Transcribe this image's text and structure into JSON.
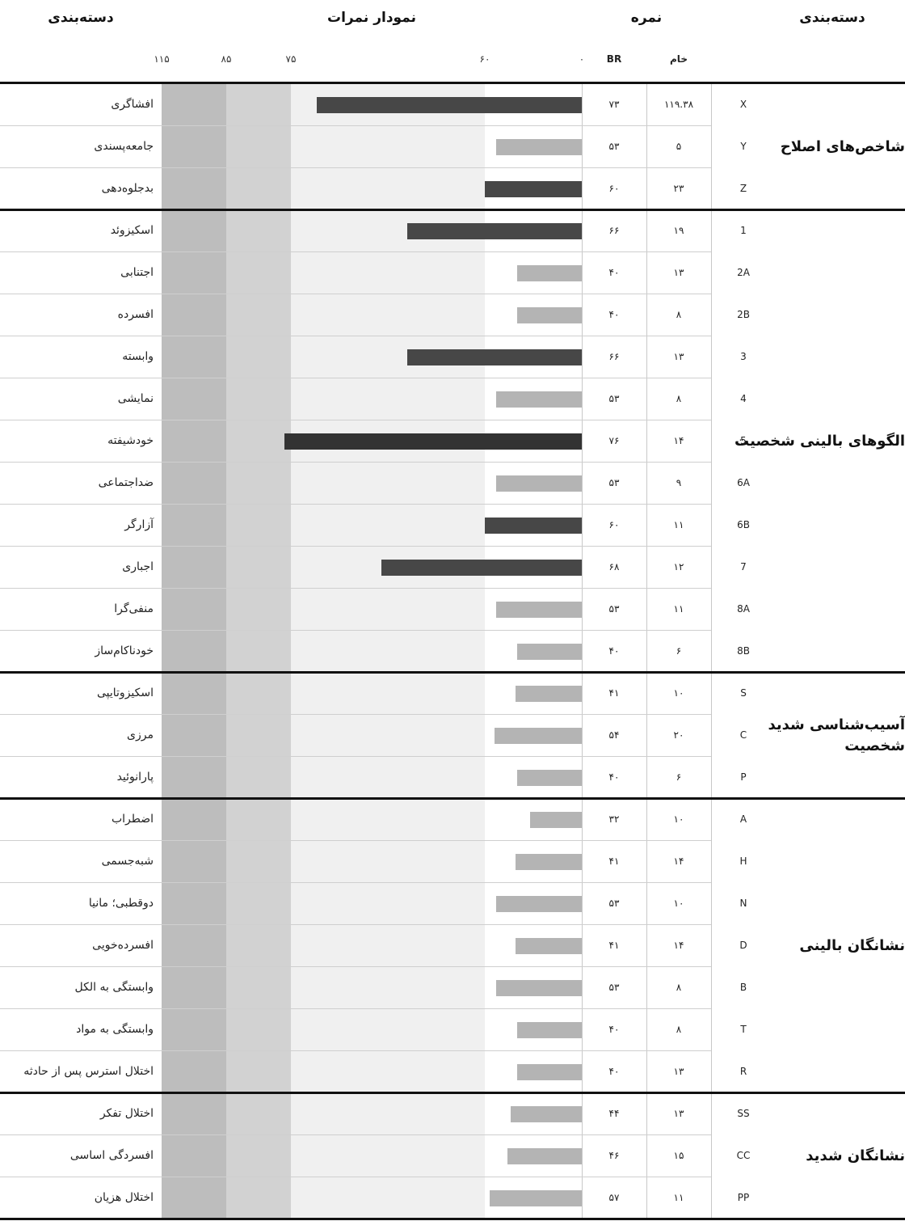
{
  "headers": {
    "category_right": "دسته‌بندی",
    "score": "نمره",
    "chart": "نمودار نمرات",
    "category_left": "دسته‌بندی",
    "raw": "خام",
    "br": "BR"
  },
  "axis_ticks": [
    "۰",
    "۶۰",
    "۷۵",
    "۸۵",
    "۱۱۵"
  ],
  "colors": {
    "band_light": "#f0f0f0",
    "band_mid": "#d2d2d2",
    "band_dark": "#bdbdbd",
    "bar_low": "#b4b4b4",
    "bar_high": "#474747",
    "bar_highest": "#333333"
  },
  "chart_data": {
    "type": "bar",
    "orientation": "horizontal",
    "direction": "right-to-left",
    "xlim": [
      0,
      115
    ],
    "cutoffs": [
      60,
      75,
      85,
      115
    ],
    "sections": [
      {
        "name": "شاخص‌های اصلاح",
        "rows": [
          {
            "code": "X",
            "raw": "۱۱۹.۳۸",
            "br_label": "۷۳",
            "br": 73,
            "label": "افشاگری"
          },
          {
            "code": "Y",
            "raw": "۵",
            "br_label": "۵۳",
            "br": 53,
            "label": "جامعه‌پسندی"
          },
          {
            "code": "Z",
            "raw": "۲۳",
            "br_label": "۶۰",
            "br": 60,
            "label": "بدجلوه‌دهی"
          }
        ]
      },
      {
        "name": "الگوهای بالینی شخصیت",
        "rows": [
          {
            "code": "1",
            "raw": "۱۹",
            "br_label": "۶۶",
            "br": 66,
            "label": "اسکیزوئد"
          },
          {
            "code": "2A",
            "raw": "۱۳",
            "br_label": "۴۰",
            "br": 40,
            "label": "اجتنابی"
          },
          {
            "code": "2B",
            "raw": "۸",
            "br_label": "۴۰",
            "br": 40,
            "label": "افسرده"
          },
          {
            "code": "3",
            "raw": "۱۳",
            "br_label": "۶۶",
            "br": 66,
            "label": "وابسته"
          },
          {
            "code": "4",
            "raw": "۸",
            "br_label": "۵۳",
            "br": 53,
            "label": "نمایشی"
          },
          {
            "code": "5",
            "raw": "۱۴",
            "br_label": "۷۶",
            "br": 76,
            "label": "خودشیفته"
          },
          {
            "code": "6A",
            "raw": "۹",
            "br_label": "۵۳",
            "br": 53,
            "label": "ضداجتماعی"
          },
          {
            "code": "6B",
            "raw": "۱۱",
            "br_label": "۶۰",
            "br": 60,
            "label": "آزارگر"
          },
          {
            "code": "7",
            "raw": "۱۲",
            "br_label": "۶۸",
            "br": 68,
            "label": "اجباری"
          },
          {
            "code": "8A",
            "raw": "۱۱",
            "br_label": "۵۳",
            "br": 53,
            "label": "منفی‌گرا"
          },
          {
            "code": "8B",
            "raw": "۶",
            "br_label": "۴۰",
            "br": 40,
            "label": "خودناکام‌ساز"
          }
        ]
      },
      {
        "name": "آسیب‌شناسی شدید شخصیت",
        "rows": [
          {
            "code": "S",
            "raw": "۱۰",
            "br_label": "۴۱",
            "br": 41,
            "label": "اسکیزوتایپی"
          },
          {
            "code": "C",
            "raw": "۲۰",
            "br_label": "۵۴",
            "br": 54,
            "label": "مرزی"
          },
          {
            "code": "P",
            "raw": "۶",
            "br_label": "۴۰",
            "br": 40,
            "label": "پارانوئید"
          }
        ]
      },
      {
        "name": "نشانگان بالینی",
        "rows": [
          {
            "code": "A",
            "raw": "۱۰",
            "br_label": "۳۲",
            "br": 32,
            "label": "اضطراب"
          },
          {
            "code": "H",
            "raw": "۱۴",
            "br_label": "۴۱",
            "br": 41,
            "label": "شبه‌جسمی"
          },
          {
            "code": "N",
            "raw": "۱۰",
            "br_label": "۵۳",
            "br": 53,
            "label": "دوقطبی؛ مانیا"
          },
          {
            "code": "D",
            "raw": "۱۴",
            "br_label": "۴۱",
            "br": 41,
            "label": "افسرده‌خویی"
          },
          {
            "code": "B",
            "raw": "۸",
            "br_label": "۵۳",
            "br": 53,
            "label": "وابستگی به الکل"
          },
          {
            "code": "T",
            "raw": "۸",
            "br_label": "۴۰",
            "br": 40,
            "label": "وابستگی به مواد"
          },
          {
            "code": "R",
            "raw": "۱۳",
            "br_label": "۴۰",
            "br": 40,
            "label": "اختلال استرس پس از حادثه"
          }
        ]
      },
      {
        "name": "نشانگان شدید",
        "rows": [
          {
            "code": "SS",
            "raw": "۱۳",
            "br_label": "۴۴",
            "br": 44,
            "label": "اختلال تفکر"
          },
          {
            "code": "CC",
            "raw": "۱۵",
            "br_label": "۴۶",
            "br": 46,
            "label": "افسردگی اساسی"
          },
          {
            "code": "PP",
            "raw": "۱۱",
            "br_label": "۵۷",
            "br": 57,
            "label": "اختلال هزیان"
          }
        ]
      }
    ]
  }
}
